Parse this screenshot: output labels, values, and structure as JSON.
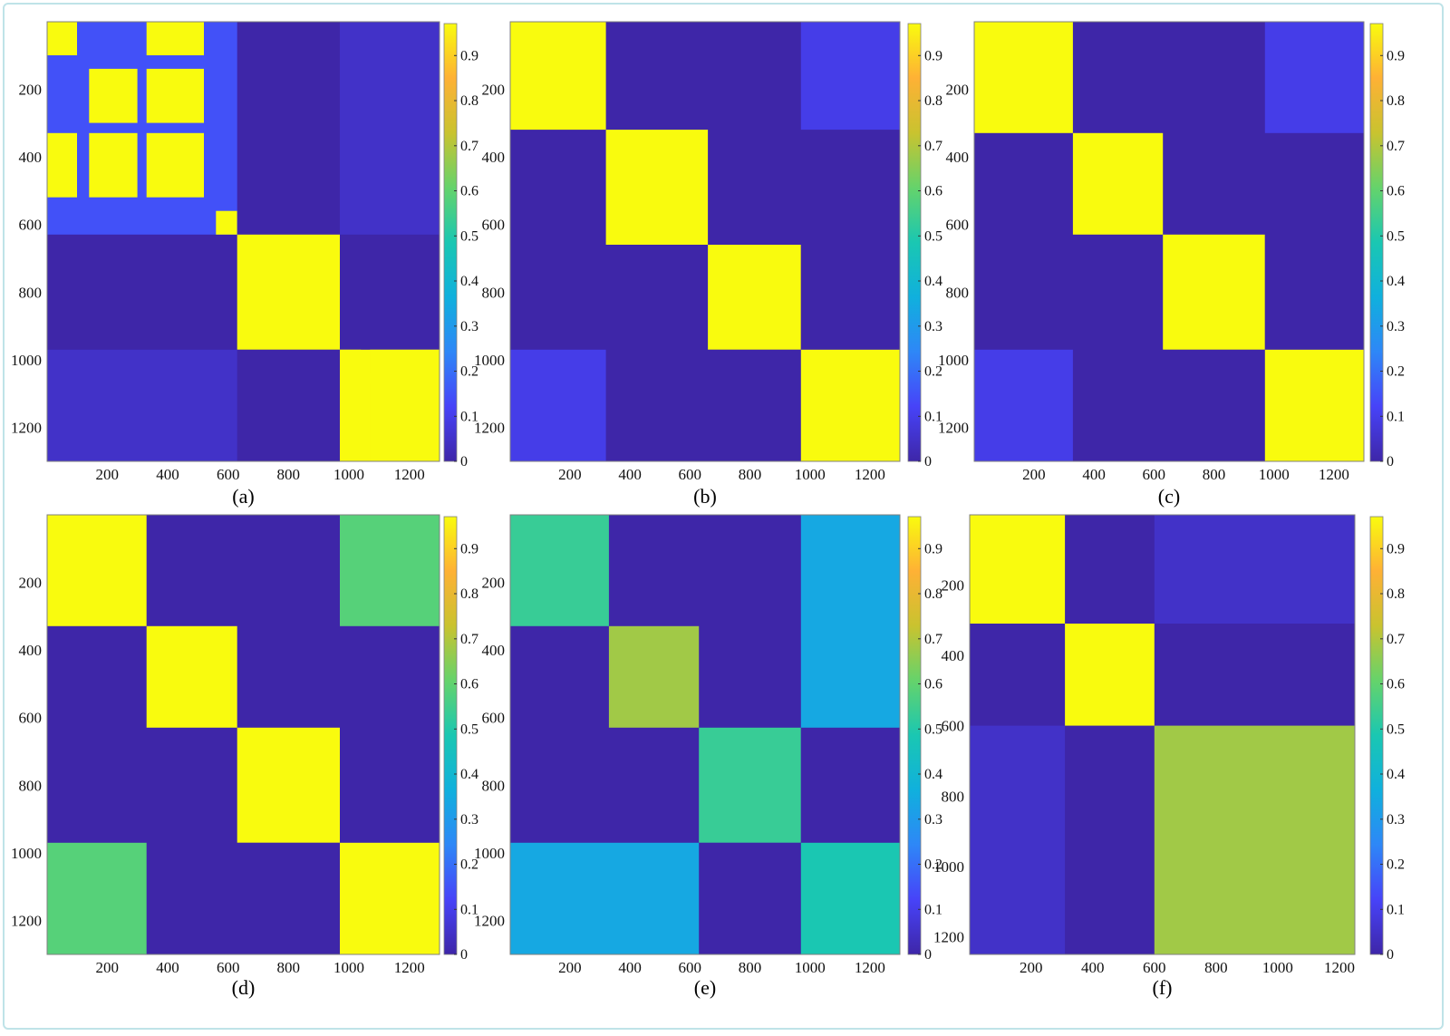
{
  "figure": {
    "colors": {
      "low": "#3d26a8",
      "high": "#f9fb0e",
      "colormap": [
        "#3e26a8",
        "#4743f8",
        "#2e87f7",
        "#10b0dd",
        "#1ac7b2",
        "#65d36b",
        "#c9c32f",
        "#feb135",
        "#f9fb0e"
      ]
    },
    "colorbar_ticks": [
      "0",
      "0.1",
      "0.2",
      "0.3",
      "0.4",
      "0.5",
      "0.6",
      "0.7",
      "0.8",
      "0.9"
    ],
    "panels": [
      {
        "label": "(a)",
        "x_ticks": [
          "200",
          "400",
          "600",
          "800",
          "1000",
          "1200"
        ],
        "y_ticks": [
          "200",
          "400",
          "600",
          "800",
          "1000",
          "1200"
        ]
      },
      {
        "label": "(b)",
        "x_ticks": [
          "200",
          "400",
          "600",
          "800",
          "1000",
          "1200"
        ],
        "y_ticks": [
          "200",
          "400",
          "600",
          "800",
          "1000",
          "1200"
        ]
      },
      {
        "label": "(c)",
        "x_ticks": [
          "200",
          "400",
          "600",
          "800",
          "1000",
          "1200"
        ],
        "y_ticks": [
          "200",
          "400",
          "600",
          "800",
          "1000",
          "1200"
        ]
      },
      {
        "label": "(d)",
        "x_ticks": [
          "200",
          "400",
          "600",
          "800",
          "1000",
          "1200"
        ],
        "y_ticks": [
          "200",
          "400",
          "600",
          "800",
          "1000",
          "1200"
        ]
      },
      {
        "label": "(e)",
        "x_ticks": [
          "200",
          "400",
          "600",
          "800",
          "1000",
          "1200"
        ],
        "y_ticks": [
          "200",
          "400",
          "600",
          "800",
          "1000",
          "1200"
        ]
      },
      {
        "label": "(f)",
        "x_ticks": [
          "200",
          "400",
          "600",
          "800",
          "1000",
          "1200"
        ],
        "y_ticks": [
          "200",
          "400",
          "600",
          "800",
          "1000",
          "1200"
        ]
      }
    ]
  },
  "chart_data": [
    {
      "type": "heatmap",
      "label": "(a)",
      "xlim": [
        1,
        1300
      ],
      "ylim": [
        1,
        1300
      ],
      "clim": [
        0,
        1
      ],
      "axis_ticks": [
        200,
        400,
        600,
        800,
        1000,
        1200
      ],
      "blocks": [
        [
          1,
          630,
          1,
          630,
          0.15
        ],
        [
          630,
          970,
          630,
          970,
          1
        ],
        [
          970,
          1300,
          970,
          1300,
          1
        ],
        [
          1,
          630,
          970,
          1300,
          0.05
        ],
        [
          970,
          1300,
          1,
          630,
          0.05
        ],
        [
          1,
          100,
          1,
          100,
          1
        ],
        [
          140,
          300,
          140,
          300,
          1
        ],
        [
          330,
          520,
          330,
          520,
          1
        ],
        [
          560,
          630,
          560,
          630,
          1
        ],
        [
          140,
          300,
          330,
          520,
          1
        ],
        [
          330,
          520,
          140,
          300,
          1
        ],
        [
          1,
          100,
          330,
          520,
          1
        ],
        [
          330,
          520,
          1,
          100,
          1
        ],
        [
          970,
          1040,
          970,
          1040,
          1
        ],
        [
          1070,
          1300,
          1070,
          1300,
          1
        ],
        [
          970,
          1040,
          1070,
          1300,
          1
        ],
        [
          1070,
          1300,
          970,
          1040,
          1
        ]
      ]
    },
    {
      "type": "heatmap",
      "label": "(b)",
      "xlim": [
        1,
        1300
      ],
      "ylim": [
        1,
        1300
      ],
      "clim": [
        0,
        1
      ],
      "axis_ticks": [
        200,
        400,
        600,
        800,
        1000,
        1200
      ],
      "blocks": [
        [
          1,
          320,
          1,
          320,
          1
        ],
        [
          320,
          660,
          320,
          660,
          1
        ],
        [
          660,
          970,
          660,
          970,
          1
        ],
        [
          970,
          1300,
          970,
          1300,
          1
        ],
        [
          1,
          320,
          970,
          1300,
          0.1
        ],
        [
          970,
          1300,
          1,
          320,
          0.1
        ]
      ]
    },
    {
      "type": "heatmap",
      "label": "(c)",
      "xlim": [
        1,
        1300
      ],
      "ylim": [
        1,
        1300
      ],
      "clim": [
        0,
        1
      ],
      "axis_ticks": [
        200,
        400,
        600,
        800,
        1000,
        1200
      ],
      "blocks": [
        [
          1,
          330,
          1,
          330,
          1
        ],
        [
          330,
          630,
          330,
          630,
          1
        ],
        [
          630,
          970,
          630,
          970,
          1
        ],
        [
          970,
          1300,
          970,
          1300,
          1
        ],
        [
          1,
          330,
          970,
          1300,
          0.1
        ],
        [
          970,
          1300,
          1,
          330,
          0.1
        ]
      ]
    },
    {
      "type": "heatmap",
      "label": "(d)",
      "xlim": [
        1,
        1300
      ],
      "ylim": [
        1,
        1300
      ],
      "clim": [
        0,
        1
      ],
      "axis_ticks": [
        200,
        400,
        600,
        800,
        1000,
        1200
      ],
      "blocks": [
        [
          1,
          330,
          1,
          330,
          1
        ],
        [
          330,
          630,
          330,
          630,
          1
        ],
        [
          630,
          970,
          630,
          970,
          1
        ],
        [
          970,
          1300,
          970,
          1300,
          1
        ],
        [
          1,
          330,
          970,
          1300,
          0.6
        ],
        [
          970,
          1300,
          1,
          330,
          0.6
        ]
      ]
    },
    {
      "type": "heatmap",
      "label": "(e)",
      "xlim": [
        1,
        1300
      ],
      "ylim": [
        1,
        1300
      ],
      "clim": [
        0,
        1
      ],
      "axis_ticks": [
        200,
        400,
        600,
        800,
        1000,
        1200
      ],
      "blocks": [
        [
          1,
          330,
          1,
          330,
          0.55
        ],
        [
          330,
          630,
          330,
          630,
          0.7
        ],
        [
          630,
          970,
          630,
          970,
          0.55
        ],
        [
          970,
          1300,
          970,
          1300,
          0.5
        ],
        [
          970,
          1300,
          1,
          630,
          0.35
        ],
        [
          1,
          630,
          970,
          1300,
          0.35
        ]
      ]
    },
    {
      "type": "heatmap",
      "label": "(f)",
      "xlim": [
        1,
        1250
      ],
      "ylim": [
        1,
        1250
      ],
      "clim": [
        0,
        1
      ],
      "axis_ticks": [
        200,
        400,
        600,
        800,
        1000,
        1200
      ],
      "blocks": [
        [
          1,
          310,
          1,
          310,
          1
        ],
        [
          310,
          600,
          310,
          600,
          1
        ],
        [
          600,
          1250,
          600,
          1250,
          0.7
        ],
        [
          1,
          310,
          600,
          1250,
          0.05
        ],
        [
          600,
          1250,
          1,
          310,
          0.05
        ]
      ]
    }
  ]
}
